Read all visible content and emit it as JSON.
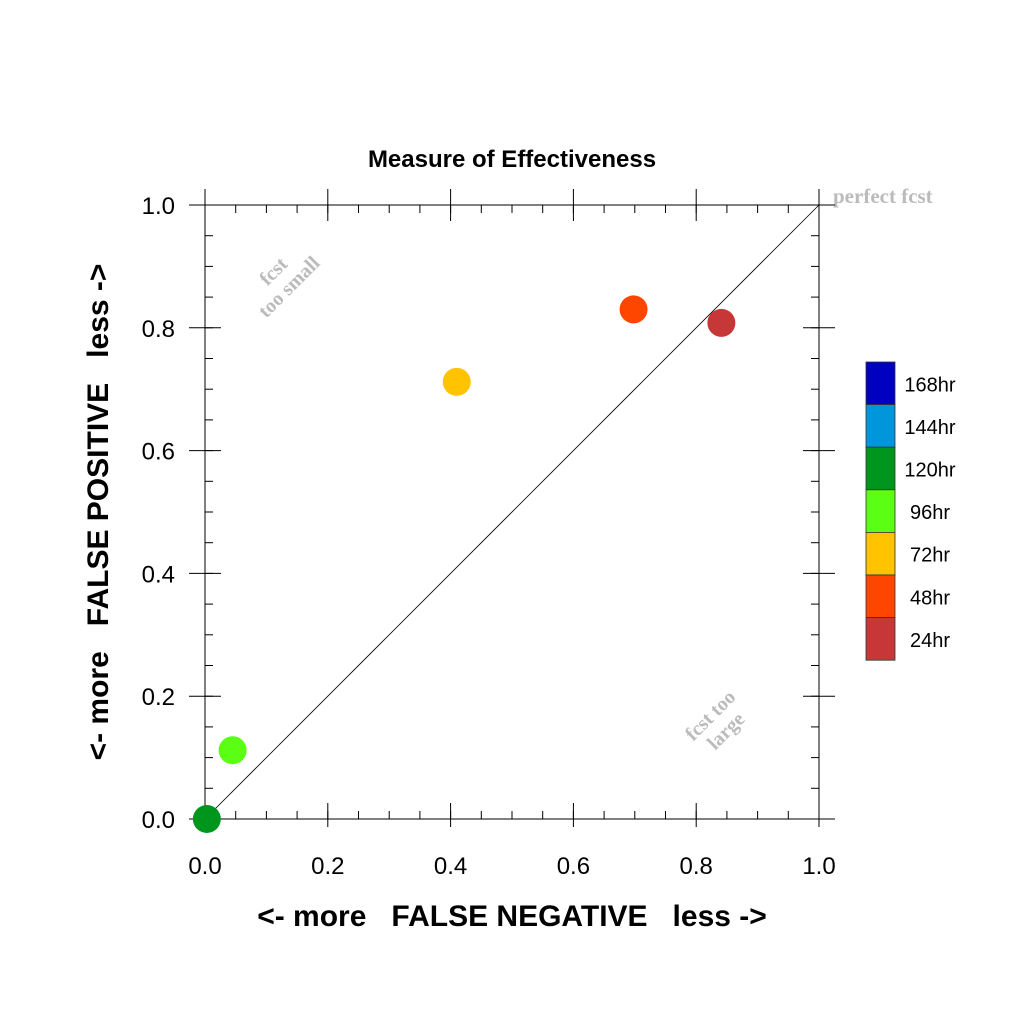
{
  "chart_data": {
    "type": "scatter",
    "title": "Measure of Effectiveness",
    "xlabel": "<- more   FALSE NEGATIVE   less ->",
    "ylabel": "<- more   FALSE POSITIVE   less ->",
    "xlim": [
      0.0,
      1.0
    ],
    "ylim": [
      0.0,
      1.0
    ],
    "x_ticks": [
      "0.0",
      "0.2",
      "0.4",
      "0.6",
      "0.8",
      "1.0"
    ],
    "y_ticks": [
      "0.0",
      "0.2",
      "0.4",
      "0.6",
      "0.8",
      "1.0"
    ],
    "diagonal_line": true,
    "grid": false,
    "legend_position": "right",
    "annotations": {
      "perfect": "perfect fcst",
      "too_small_line1": "fcst",
      "too_small_line2": "too small",
      "too_large_line1": "fcst too",
      "too_large_line2": "large"
    },
    "legend": [
      {
        "label": "168hr",
        "color": "#0000c0"
      },
      {
        "label": "144hr",
        "color": "#0096dc"
      },
      {
        "label": "120hr",
        "color": "#00961e"
      },
      {
        "label": "96hr",
        "color": "#5aff14"
      },
      {
        "label": "72hr",
        "color": "#ffc300"
      },
      {
        "label": "48hr",
        "color": "#ff4600"
      },
      {
        "label": "24hr",
        "color": "#c83737"
      }
    ],
    "points": [
      {
        "lead": "120hr",
        "x": 0.003,
        "y": 0.0,
        "color": "#00961e"
      },
      {
        "lead": "96hr",
        "x": 0.045,
        "y": 0.112,
        "color": "#5aff14"
      },
      {
        "lead": "72hr",
        "x": 0.41,
        "y": 0.712,
        "color": "#ffc300"
      },
      {
        "lead": "48hr",
        "x": 0.698,
        "y": 0.83,
        "color": "#ff4600"
      },
      {
        "lead": "24hr",
        "x": 0.841,
        "y": 0.808,
        "color": "#c83737"
      }
    ]
  }
}
